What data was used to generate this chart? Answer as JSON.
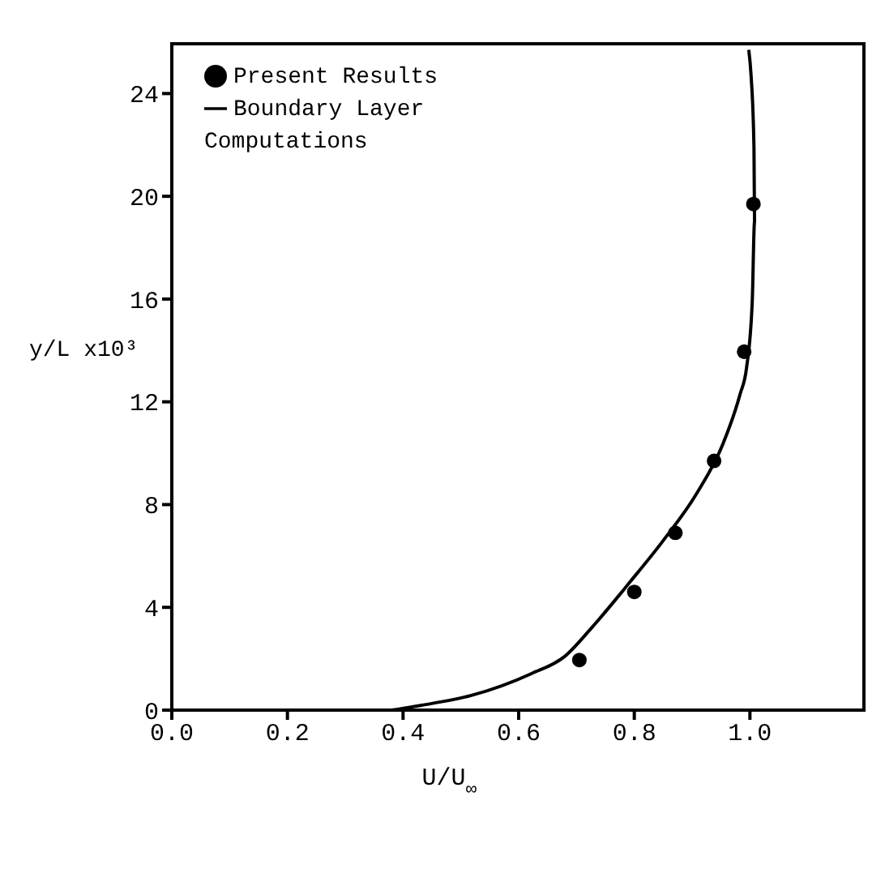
{
  "chart_data": {
    "type": "scatter",
    "xlabel": "U/U$_{∞}$",
    "ylabel": "y/L x10³",
    "xlim": [
      0,
      1.2
    ],
    "xticks": [
      {
        "value": 0,
        "label": "0.0"
      },
      {
        "value": 0.2,
        "label": "0.2"
      },
      {
        "value": 0.4,
        "label": "0.4"
      },
      {
        "value": 0.6,
        "label": "0.6"
      },
      {
        "value": 0.8,
        "label": "0.8"
      },
      {
        "value": 1,
        "label": "1.0"
      }
    ],
    "ylim": [
      0,
      26
    ],
    "yticks": [
      0,
      4,
      8,
      12,
      16,
      20,
      24
    ],
    "grid": false,
    "legend": "top left",
    "series": [
      {
        "name": "Present Results",
        "marker": "circle",
        "color": "#000000",
        "x": [
          0.705,
          0.8,
          0.871,
          0.938,
          0.99,
          1.006
        ],
        "values": [
          1.95,
          4.6,
          6.9,
          9.7,
          13.95,
          19.7
        ]
      },
      {
        "name": "Boundary Layer Computations",
        "type": "line",
        "marker": "none",
        "line_style": "solid",
        "color": "#000000",
        "x": [
          0.38,
          0.432,
          0.518,
          0.622,
          0.679,
          0.726,
          0.793,
          0.85,
          0.907,
          0.954,
          0.983,
          0.994,
          1.004,
          1.008,
          1.007,
          1.002,
          0.998
        ],
        "values": [
          0,
          0.19,
          0.57,
          1.42,
          2.08,
          3.2,
          5.0,
          6.6,
          8.4,
          10.4,
          12.3,
          13.3,
          15.9,
          19,
          21.9,
          24.7,
          25.7
        ]
      }
    ]
  }
}
